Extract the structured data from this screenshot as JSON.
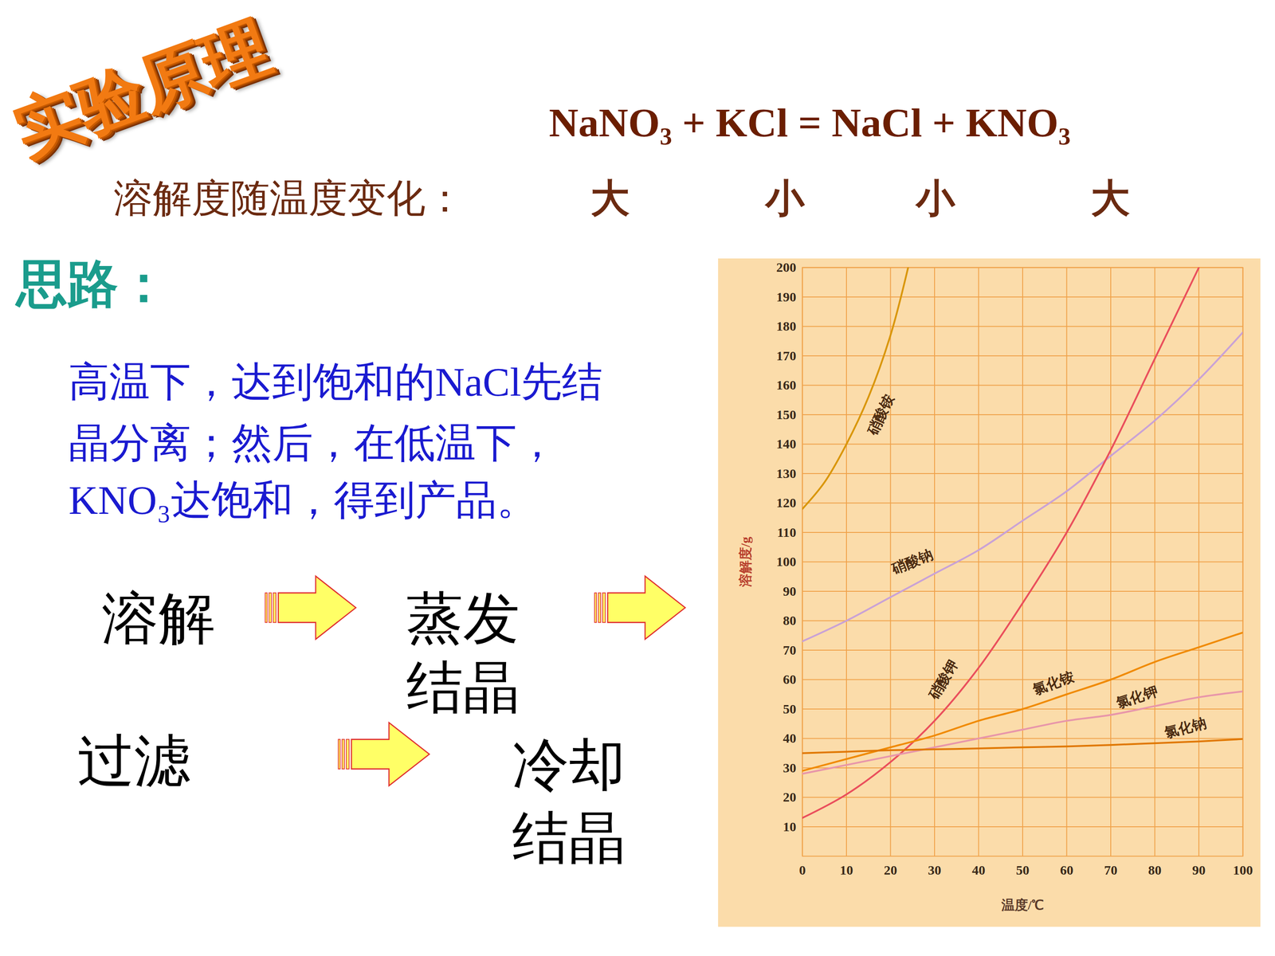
{
  "slide": {
    "heading": "实验原理",
    "equation": "NaNO₃ + KCl = NaCl + KNO₃",
    "solubility_trend": {
      "label": "溶解度随温度变化：",
      "values": [
        "大",
        "小",
        "小",
        "大"
      ]
    },
    "idea": {
      "title": "思路：",
      "lines": [
        "高温下，达到饱和的NaCl先结",
        "晶分离；然后，在低温下，",
        "KNO₃达饱和，得到产品。"
      ]
    },
    "flow": [
      [
        "溶解"
      ],
      [
        "蒸发",
        "结晶"
      ],
      [
        "过滤"
      ],
      [
        "冷却",
        "结晶"
      ]
    ]
  },
  "chart_data": {
    "type": "line",
    "x_label": "温度/℃",
    "y_label": "溶解度/g",
    "xlim": [
      0,
      100
    ],
    "ylim": [
      0,
      200
    ],
    "xticks": [
      0,
      10,
      20,
      30,
      40,
      50,
      60,
      70,
      80,
      90,
      100
    ],
    "yticks": [
      10,
      20,
      30,
      40,
      50,
      60,
      70,
      80,
      90,
      100,
      110,
      120,
      130,
      140,
      150,
      160,
      170,
      180,
      190,
      200
    ],
    "grid": true,
    "series": [
      {
        "name": "硝酸铵",
        "color": "#d9960a",
        "x": [
          0,
          5,
          10,
          15,
          20,
          24
        ],
        "values": [
          118,
          127,
          140,
          156,
          177,
          200
        ]
      },
      {
        "name": "硝酸钠",
        "color": "#c9a2d6",
        "x": [
          0,
          10,
          20,
          30,
          40,
          50,
          60,
          70,
          80,
          90,
          100
        ],
        "values": [
          73,
          80,
          88,
          96,
          104,
          114,
          124,
          136,
          148,
          162,
          178
        ]
      },
      {
        "name": "硝酸钾",
        "color": "#ea4f5c",
        "x": [
          0,
          10,
          20,
          30,
          40,
          50,
          60,
          70,
          80,
          90
        ],
        "values": [
          13,
          21,
          32,
          46,
          64,
          86,
          110,
          138,
          169,
          200
        ]
      },
      {
        "name": "氯化铵",
        "color": "#f08a00",
        "x": [
          0,
          10,
          20,
          30,
          40,
          50,
          60,
          70,
          80,
          90,
          100
        ],
        "values": [
          29,
          33,
          37,
          41,
          46,
          50,
          55,
          60,
          66,
          71,
          76
        ]
      },
      {
        "name": "氯化钾",
        "color": "#e896aa",
        "x": [
          0,
          10,
          20,
          30,
          40,
          50,
          60,
          70,
          80,
          90,
          100
        ],
        "values": [
          28,
          31,
          34,
          37,
          40,
          43,
          46,
          48,
          51,
          54,
          56
        ]
      },
      {
        "name": "氯化钠",
        "color": "#e07800",
        "x": [
          0,
          10,
          20,
          30,
          40,
          50,
          60,
          70,
          80,
          90,
          100
        ],
        "values": [
          35,
          35.5,
          36,
          36.3,
          36.6,
          37,
          37.3,
          37.8,
          38.4,
          39,
          39.8
        ]
      }
    ]
  }
}
